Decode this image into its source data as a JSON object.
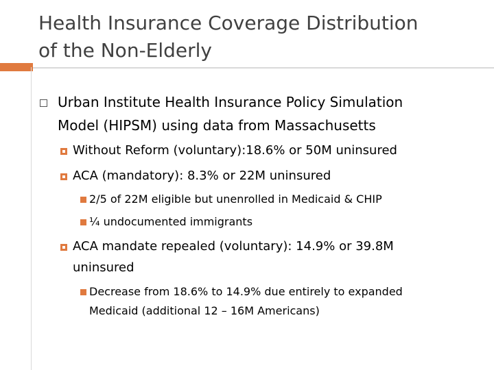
{
  "title": {
    "line1": "Health Insurance Coverage Distribution",
    "line2": "of the Non-Elderly"
  },
  "bullets": {
    "main": {
      "line1": "Urban Institute Health Insurance Policy Simulation",
      "line2": "Model (HIPSM) using data from Massachusetts"
    },
    "sub1": "Without Reform (voluntary):18.6% or 50M uninsured",
    "sub2": "ACA (mandatory): 8.3% or 22M uninsured",
    "sub2_items": [
      "2/5 of 22M eligible but unenrolled in Medicaid & CHIP",
      "¼ undocumented immigrants"
    ],
    "sub3": {
      "line1": "ACA mandate repealed (voluntary): 14.9% or 39.8M",
      "line2": "uninsured"
    },
    "sub3_items": {
      "line1": "Decrease from 18.6% to 14.9% due entirely to expanded",
      "line2": "Medicaid (additional 12 – 16M Americans)"
    }
  },
  "colors": {
    "accent": "#e07a3f",
    "rule": "#d9d9d9",
    "title": "#404040"
  }
}
